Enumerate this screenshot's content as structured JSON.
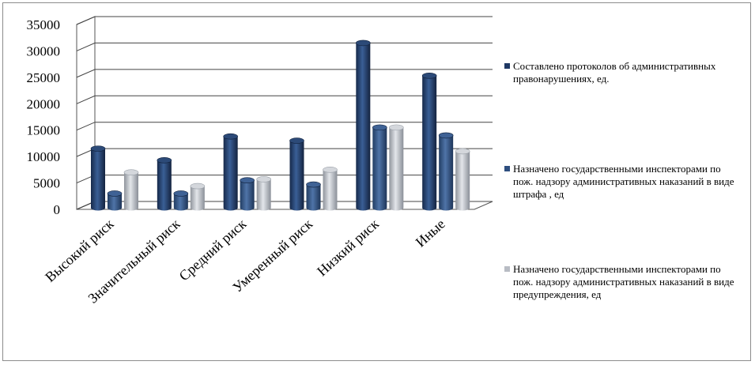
{
  "chart_data": {
    "type": "bar",
    "categories": [
      "Высокий риск",
      "Значительный риск",
      "Средний риск",
      "Умеренный риск",
      "Низкий риск",
      "Иные"
    ],
    "series": [
      {
        "name": "Составлено протоколов об административных правонарушениях, ед.",
        "color": "#1f3864",
        "values": [
          11500,
          9300,
          13800,
          13000,
          31500,
          25300
        ]
      },
      {
        "name": "Назначено государственными инспекторами по пож. надзору административных наказаний в виде штрафа , ед",
        "color": "#2e4f7f",
        "values": [
          3000,
          3000,
          5500,
          4700,
          15500,
          14000
        ]
      },
      {
        "name": "Назначено государственными инспекторами по пож. надзору административных наказаний в виде предупреждения, ед",
        "color": "#b8bcc4",
        "values": [
          7000,
          4400,
          5700,
          7500,
          15500,
          11000
        ]
      }
    ],
    "yticks": [
      0,
      5000,
      10000,
      15000,
      20000,
      25000,
      30000,
      35000
    ],
    "ylim": [
      0,
      35000
    ],
    "grid": true,
    "legend_position": "right"
  }
}
